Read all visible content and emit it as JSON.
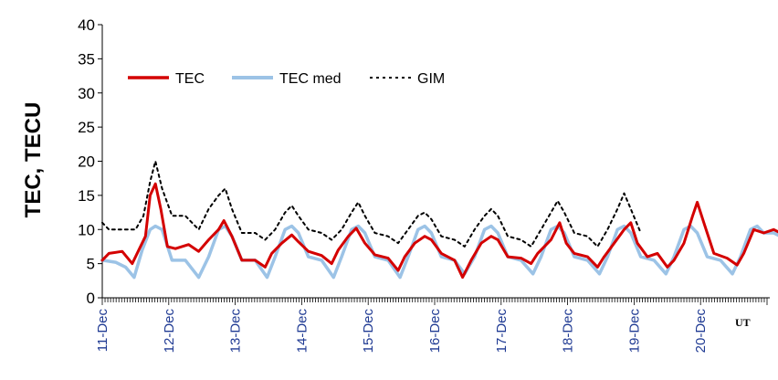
{
  "chart_data": {
    "type": "line",
    "ylabel": "TEC, TECU",
    "xlabel": "",
    "x_unit_label": "UT",
    "ylim": [
      0,
      40
    ],
    "yticks": [
      0,
      5,
      10,
      15,
      20,
      25,
      30,
      35,
      40
    ],
    "xlim_days": [
      0,
      10.2
    ],
    "categories": [
      "11-Dec",
      "12-Dec",
      "13-Dec",
      "14-Dec",
      "15-Dec",
      "16-Dec",
      "17-Dec",
      "18-Dec",
      "19-Dec",
      "20-Dec"
    ],
    "legend": {
      "placement": "top-left",
      "entries": [
        "TEC",
        "TEC med",
        "GIM"
      ]
    },
    "grid": false,
    "series": [
      {
        "name": "TEC",
        "color": "#d40000",
        "style": "solid",
        "points": [
          [
            0,
            5.5
          ],
          [
            0.1,
            6.5
          ],
          [
            0.3,
            6.8
          ],
          [
            0.45,
            5
          ],
          [
            0.55,
            7
          ],
          [
            0.65,
            9
          ],
          [
            0.72,
            15
          ],
          [
            0.8,
            16.7
          ],
          [
            0.88,
            13
          ],
          [
            0.98,
            7.5
          ],
          [
            1.1,
            7.2
          ],
          [
            1.3,
            7.8
          ],
          [
            1.45,
            6.8
          ],
          [
            1.6,
            8.5
          ],
          [
            1.75,
            10
          ],
          [
            1.83,
            11.3
          ],
          [
            1.95,
            9
          ],
          [
            2.1,
            5.5
          ],
          [
            2.3,
            5.5
          ],
          [
            2.45,
            4.5
          ],
          [
            2.55,
            6.5
          ],
          [
            2.7,
            8
          ],
          [
            2.85,
            9.2
          ],
          [
            2.95,
            8.2
          ],
          [
            3.1,
            6.8
          ],
          [
            3.3,
            6.2
          ],
          [
            3.45,
            5
          ],
          [
            3.55,
            7
          ],
          [
            3.7,
            9
          ],
          [
            3.82,
            10.2
          ],
          [
            3.95,
            8
          ],
          [
            4.1,
            6.3
          ],
          [
            4.3,
            5.8
          ],
          [
            4.45,
            4
          ],
          [
            4.55,
            6
          ],
          [
            4.7,
            8
          ],
          [
            4.85,
            9
          ],
          [
            4.95,
            8.5
          ],
          [
            5.1,
            6.5
          ],
          [
            5.3,
            5.5
          ],
          [
            5.42,
            3
          ],
          [
            5.55,
            5.5
          ],
          [
            5.7,
            8
          ],
          [
            5.85,
            9
          ],
          [
            5.95,
            8.5
          ],
          [
            6.1,
            6
          ],
          [
            6.3,
            5.8
          ],
          [
            6.45,
            5
          ],
          [
            6.55,
            6.5
          ],
          [
            6.75,
            8.5
          ],
          [
            6.88,
            11
          ],
          [
            6.98,
            8
          ],
          [
            7.1,
            6.5
          ],
          [
            7.3,
            6
          ],
          [
            7.45,
            4.5
          ],
          [
            7.55,
            6
          ],
          [
            7.7,
            8
          ],
          [
            7.85,
            10
          ],
          [
            7.95,
            11
          ],
          [
            8.05,
            8
          ],
          [
            8.2,
            6
          ],
          [
            8.35,
            6.5
          ],
          [
            8.5,
            4.5
          ],
          [
            8.6,
            5.5
          ],
          [
            8.75,
            8
          ],
          [
            8.88,
            12
          ],
          [
            8.95,
            14
          ],
          [
            9.05,
            11
          ],
          [
            9.2,
            6.5
          ],
          [
            9.4,
            5.8
          ],
          [
            9.55,
            4.8
          ],
          [
            9.65,
            6.5
          ],
          [
            9.8,
            10
          ],
          [
            9.95,
            9.5
          ],
          [
            10.1,
            10
          ],
          [
            10.2,
            9.5
          ]
        ]
      },
      {
        "name": "TEC med",
        "color": "#9cc3e6",
        "style": "solid",
        "points": [
          [
            0,
            5.5
          ],
          [
            0.2,
            5.2
          ],
          [
            0.35,
            4.5
          ],
          [
            0.48,
            3
          ],
          [
            0.6,
            7
          ],
          [
            0.72,
            10
          ],
          [
            0.8,
            10.5
          ],
          [
            0.9,
            10
          ],
          [
            1.05,
            5.5
          ],
          [
            1.25,
            5.5
          ],
          [
            1.45,
            3
          ],
          [
            1.6,
            6
          ],
          [
            1.75,
            10
          ],
          [
            1.85,
            10.5
          ],
          [
            1.95,
            9
          ],
          [
            2.1,
            5.5
          ],
          [
            2.3,
            5.5
          ],
          [
            2.48,
            3
          ],
          [
            2.6,
            6
          ],
          [
            2.75,
            10
          ],
          [
            2.85,
            10.5
          ],
          [
            2.95,
            9.5
          ],
          [
            3.1,
            6
          ],
          [
            3.3,
            5.5
          ],
          [
            3.48,
            3
          ],
          [
            3.6,
            6
          ],
          [
            3.75,
            10
          ],
          [
            3.85,
            10.5
          ],
          [
            3.95,
            9.5
          ],
          [
            4.1,
            6
          ],
          [
            4.3,
            5.5
          ],
          [
            4.48,
            3
          ],
          [
            4.6,
            6
          ],
          [
            4.75,
            10
          ],
          [
            4.85,
            10.5
          ],
          [
            4.95,
            9.5
          ],
          [
            5.1,
            6
          ],
          [
            5.3,
            5.5
          ],
          [
            5.45,
            3.5
          ],
          [
            5.6,
            6
          ],
          [
            5.75,
            10
          ],
          [
            5.85,
            10.5
          ],
          [
            5.95,
            9.5
          ],
          [
            6.1,
            6
          ],
          [
            6.3,
            5.5
          ],
          [
            6.48,
            3.5
          ],
          [
            6.6,
            6
          ],
          [
            6.75,
            10
          ],
          [
            6.85,
            10.5
          ],
          [
            6.95,
            9.5
          ],
          [
            7.1,
            6
          ],
          [
            7.3,
            5.5
          ],
          [
            7.48,
            3.5
          ],
          [
            7.6,
            6
          ],
          [
            7.75,
            10
          ],
          [
            7.85,
            10.5
          ],
          [
            7.95,
            9.5
          ],
          [
            8.1,
            6
          ],
          [
            8.3,
            5.5
          ],
          [
            8.48,
            3.5
          ],
          [
            8.6,
            6
          ],
          [
            8.75,
            10
          ],
          [
            8.85,
            10.5
          ],
          [
            8.95,
            9.5
          ],
          [
            9.1,
            6
          ],
          [
            9.3,
            5.5
          ],
          [
            9.48,
            3.5
          ],
          [
            9.6,
            6
          ],
          [
            9.75,
            10
          ],
          [
            9.85,
            10.5
          ],
          [
            9.95,
            9.5
          ],
          [
            10.1,
            9.5
          ],
          [
            10.2,
            9
          ]
        ]
      },
      {
        "name": "GIM",
        "color": "#000000",
        "style": "dotted",
        "points": [
          [
            0,
            11
          ],
          [
            0.1,
            10
          ],
          [
            0.3,
            10
          ],
          [
            0.5,
            10
          ],
          [
            0.62,
            12
          ],
          [
            0.72,
            17
          ],
          [
            0.8,
            20
          ],
          [
            0.9,
            16
          ],
          [
            1.05,
            12
          ],
          [
            1.25,
            12
          ],
          [
            1.45,
            10
          ],
          [
            1.6,
            13
          ],
          [
            1.75,
            15
          ],
          [
            1.85,
            16
          ],
          [
            1.95,
            13
          ],
          [
            2.1,
            9.5
          ],
          [
            2.3,
            9.5
          ],
          [
            2.45,
            8.5
          ],
          [
            2.6,
            10
          ],
          [
            2.75,
            12.5
          ],
          [
            2.85,
            13.5
          ],
          [
            2.95,
            12
          ],
          [
            3.1,
            10
          ],
          [
            3.3,
            9.5
          ],
          [
            3.45,
            8.5
          ],
          [
            3.6,
            10
          ],
          [
            3.75,
            12.5
          ],
          [
            3.85,
            14
          ],
          [
            3.95,
            12
          ],
          [
            4.1,
            9.5
          ],
          [
            4.3,
            9
          ],
          [
            4.45,
            8
          ],
          [
            4.6,
            10
          ],
          [
            4.75,
            12
          ],
          [
            4.85,
            12.5
          ],
          [
            4.95,
            11.5
          ],
          [
            5.1,
            9
          ],
          [
            5.3,
            8.5
          ],
          [
            5.45,
            7.5
          ],
          [
            5.6,
            10
          ],
          [
            5.75,
            12
          ],
          [
            5.85,
            13
          ],
          [
            5.95,
            12
          ],
          [
            6.1,
            9
          ],
          [
            6.3,
            8.5
          ],
          [
            6.45,
            7.5
          ],
          [
            6.6,
            10
          ],
          [
            6.75,
            12.5
          ],
          [
            6.85,
            14.2
          ],
          [
            6.95,
            12.5
          ],
          [
            7.1,
            9.5
          ],
          [
            7.3,
            9
          ],
          [
            7.45,
            7.5
          ],
          [
            7.6,
            10
          ],
          [
            7.75,
            13
          ],
          [
            7.85,
            15.3
          ],
          [
            7.95,
            13
          ],
          [
            8.1,
            9.5
          ]
        ]
      }
    ]
  }
}
